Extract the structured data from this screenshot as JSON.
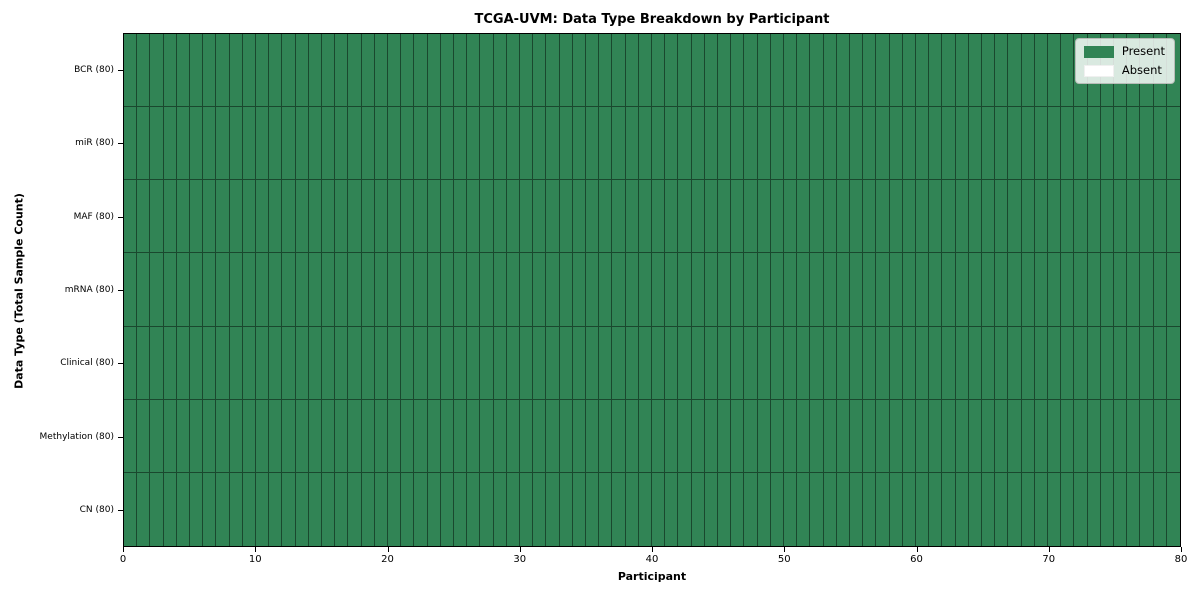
{
  "chart_data": {
    "type": "heatmap",
    "title": "TCGA-UVM: Data Type Breakdown by Participant",
    "xlabel": "Participant",
    "ylabel": "Data Type (Total Sample Count)",
    "x_range": [
      0,
      80
    ],
    "x_ticks": [
      0,
      10,
      20,
      30,
      40,
      50,
      60,
      70,
      80
    ],
    "n_participants": 80,
    "grid": "cell-borders-on",
    "rows": [
      {
        "label": "BCR (80)",
        "total_samples": 80,
        "present_count": 80,
        "absent_count": 0
      },
      {
        "label": "miR (80)",
        "total_samples": 80,
        "present_count": 80,
        "absent_count": 0
      },
      {
        "label": "MAF (80)",
        "total_samples": 80,
        "present_count": 80,
        "absent_count": 0
      },
      {
        "label": "mRNA (80)",
        "total_samples": 80,
        "present_count": 80,
        "absent_count": 0
      },
      {
        "label": "Clinical (80)",
        "total_samples": 80,
        "present_count": 80,
        "absent_count": 0
      },
      {
        "label": "Methylation (80)",
        "total_samples": 80,
        "present_count": 80,
        "absent_count": 0
      },
      {
        "label": "CN (80)",
        "total_samples": 80,
        "present_count": 80,
        "absent_count": 0
      }
    ],
    "legend": {
      "position": "upper-right",
      "items": [
        {
          "label": "Present",
          "color": "#318455"
        },
        {
          "label": "Absent",
          "color": "#ffffff"
        }
      ]
    },
    "colors": {
      "present": "#318455",
      "absent": "#ffffff",
      "cell_edge": "rgba(0,0,0,0.45)",
      "axis": "#000000"
    }
  }
}
